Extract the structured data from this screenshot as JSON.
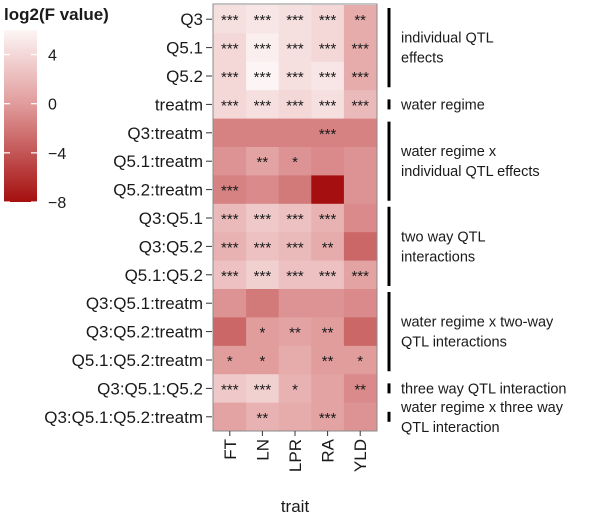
{
  "chart_data": {
    "type": "heatmap",
    "legend_title": "log2(F value)",
    "legend_ticks": [
      "4",
      "0",
      "−4",
      "−8"
    ],
    "legend_tick_values": [
      4,
      0,
      -4,
      -8
    ],
    "color_range": [
      -8,
      6
    ],
    "colors": {
      "low": "#a50f0f",
      "mid": "#e19c9c",
      "high": "#fdf5f5"
    },
    "xlabel": "trait",
    "columns": [
      "FT",
      "LN",
      "LPR",
      "RA",
      "YLD"
    ],
    "rows": [
      "Q3",
      "Q5.1",
      "Q5.2",
      "treatm",
      "Q3:treatm",
      "Q5.1:treatm",
      "Q5.2:treatm",
      "Q3:Q5.1",
      "Q3:Q5.2",
      "Q5.1:Q5.2",
      "Q3:Q5.1:treatm",
      "Q3:Q5.2:treatm",
      "Q5.1:Q5.2:treatm",
      "Q3:Q5.1:Q5.2",
      "Q3:Q5.1:Q5.2:treatm"
    ],
    "values": [
      [
        4.5,
        5.0,
        4.5,
        4.0,
        1.0
      ],
      [
        4.0,
        5.5,
        4.5,
        4.0,
        1.0
      ],
      [
        4.0,
        6.0,
        4.5,
        5.0,
        1.0
      ],
      [
        4.0,
        4.5,
        4.0,
        4.5,
        2.0
      ],
      [
        -1.5,
        -1.5,
        -1.5,
        -1.5,
        -1.5
      ],
      [
        -0.5,
        0.5,
        -0.5,
        -1.0,
        -0.5
      ],
      [
        -1.5,
        -1.0,
        -2.0,
        -8.0,
        -0.5
      ],
      [
        2.0,
        3.0,
        2.5,
        1.5,
        -1.0
      ],
      [
        1.5,
        2.5,
        2.0,
        1.0,
        -3.0
      ],
      [
        2.5,
        3.5,
        2.5,
        2.5,
        0.5
      ],
      [
        -0.5,
        -2.0,
        -0.5,
        -0.5,
        -1.0
      ],
      [
        -3.0,
        0.0,
        0.5,
        0.0,
        -3.0
      ],
      [
        0.0,
        0.0,
        1.0,
        0.0,
        0.0
      ],
      [
        3.0,
        3.5,
        1.5,
        0.5,
        -1.0
      ],
      [
        0.5,
        1.5,
        1.0,
        0.5,
        -0.5
      ]
    ],
    "significance": [
      [
        "***",
        "***",
        "***",
        "***",
        "**"
      ],
      [
        "***",
        "***",
        "***",
        "***",
        "***"
      ],
      [
        "***",
        "***",
        "***",
        "***",
        "***"
      ],
      [
        "***",
        "***",
        "***",
        "***",
        "***"
      ],
      [
        "",
        "",
        "",
        "***",
        ""
      ],
      [
        "",
        "**",
        "*",
        "",
        ""
      ],
      [
        "***",
        "",
        "",
        "",
        ""
      ],
      [
        "***",
        "***",
        "***",
        "***",
        ""
      ],
      [
        "***",
        "***",
        "***",
        "**",
        ""
      ],
      [
        "***",
        "***",
        "***",
        "***",
        "***"
      ],
      [
        "",
        "",
        "",
        "",
        ""
      ],
      [
        "",
        "*",
        "**",
        "**",
        ""
      ],
      [
        "*",
        "*",
        "",
        "**",
        "*"
      ],
      [
        "***",
        "***",
        "*",
        "",
        "**"
      ],
      [
        "",
        "**",
        "",
        "***",
        ""
      ]
    ],
    "groups": [
      {
        "lines": [
          "individual QTL",
          "effects"
        ],
        "row_start": 0,
        "row_end": 2
      },
      {
        "lines": [
          "water regime"
        ],
        "row_start": 3,
        "row_end": 3
      },
      {
        "lines": [
          "water regime x",
          "individual QTL effects"
        ],
        "row_start": 4,
        "row_end": 6
      },
      {
        "lines": [
          "two way QTL",
          "interactions"
        ],
        "row_start": 7,
        "row_end": 9
      },
      {
        "lines": [
          "water regime x two-way",
          "QTL interactions"
        ],
        "row_start": 10,
        "row_end": 12
      },
      {
        "lines": [
          "three way QTL interaction"
        ],
        "row_start": 13,
        "row_end": 13
      },
      {
        "lines": [
          "water regime x three way",
          "QTL interaction"
        ],
        "row_start": 14,
        "row_end": 14
      }
    ]
  }
}
